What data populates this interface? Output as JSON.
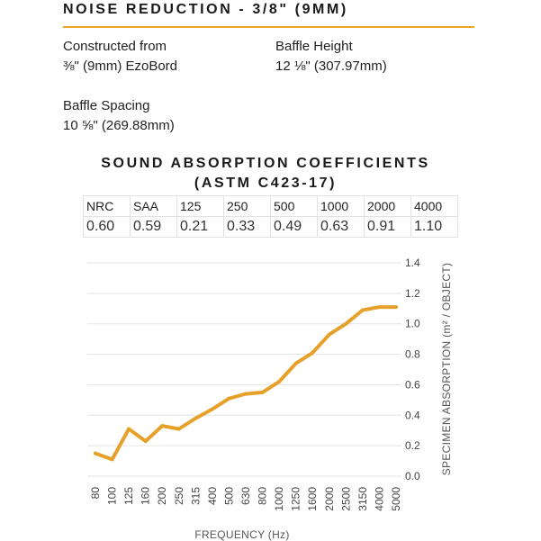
{
  "header": {
    "title": "NOISE  REDUCTION - 3/8\" (9MM)"
  },
  "specs": {
    "constructed": {
      "label": "Constructed from",
      "value": "⅜\" (9mm) EzoBord"
    },
    "height": {
      "label": "Baffle Height",
      "value": "12 ⅛\" (307.97mm)"
    },
    "spacing": {
      "label": "Baffle Spacing",
      "value": "10 ⅝\" (269.88mm)"
    }
  },
  "coefficients": {
    "title_line1": "SOUND ABSORPTION COEFFICIENTS",
    "title_line2": "(ASTM C423-17)",
    "headers": [
      "NRC",
      "SAA",
      "125",
      "250",
      "500",
      "1000",
      "2000",
      "4000"
    ],
    "values": [
      "0.60",
      "0.59",
      "0.21",
      "0.33",
      "0.49",
      "0.63",
      "0.91",
      "1.10"
    ]
  },
  "chart_data": {
    "type": "line",
    "xlabel": "FREQUENCY (Hz)",
    "ylabel": "SPECIMEN ABSORPTION (m² / OBJECT)",
    "x": [
      "80",
      "100",
      "125",
      "160",
      "200",
      "250",
      "315",
      "400",
      "500",
      "630",
      "800",
      "1000",
      "1250",
      "1600",
      "2000",
      "2500",
      "3150",
      "4000",
      "5000"
    ],
    "series": [
      {
        "values": [
          0.15,
          0.11,
          0.31,
          0.23,
          0.33,
          0.31,
          0.38,
          0.44,
          0.51,
          0.54,
          0.55,
          0.62,
          0.74,
          0.81,
          0.93,
          1.0,
          1.09,
          1.11,
          1.11
        ]
      }
    ],
    "yticks": [
      "0.0",
      "0.2",
      "0.4",
      "0.6",
      "0.8",
      "1.0",
      "1.2",
      "1.4"
    ],
    "ylim": [
      0,
      1.4
    ],
    "y_axis_side": "right",
    "grid": true,
    "line_color": "#e7a12a"
  }
}
